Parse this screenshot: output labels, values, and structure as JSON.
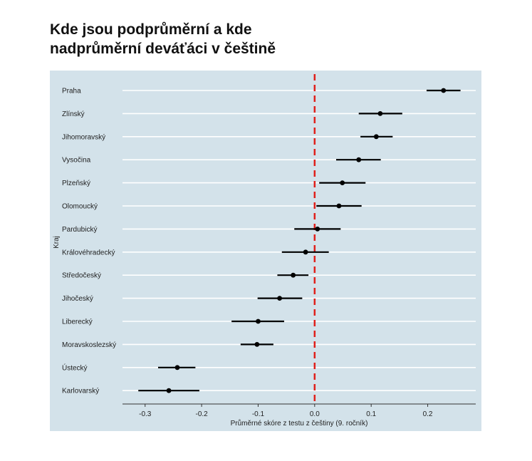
{
  "chart_data": {
    "type": "dot-range",
    "title_lines": [
      "Kde jsou podprůměrní a kde",
      "nadprůměrní deváťáci v češtině"
    ],
    "xlabel": "Průměrné skóre z testu z češtiny (9. ročník)",
    "ylabel": "Kraj",
    "xlim": [
      -0.34,
      0.285
    ],
    "xticks": [
      -0.3,
      -0.2,
      -0.1,
      0.0,
      0.1,
      0.2
    ],
    "xtick_labels": [
      "-0.3",
      "-0.2",
      "-0.1",
      "0.0",
      "0.1",
      "0.2"
    ],
    "reference_line": 0.0,
    "reference_color": "#e0201b",
    "series_color": "#000000",
    "categories": [
      "Praha",
      "Zlínský",
      "Jihomoravský",
      "Vysočina",
      "Plzeňský",
      "Olomoucký",
      "Pardubický",
      "Královéhradecký",
      "Středočeský",
      "Jihočeský",
      "Liberecký",
      "Moravskoslezský",
      "Ústecký",
      "Karlovarský"
    ],
    "estimates": [
      0.228,
      0.116,
      0.109,
      0.078,
      0.049,
      0.043,
      0.005,
      -0.016,
      -0.038,
      -0.062,
      -0.1,
      -0.102,
      -0.243,
      -0.258
    ],
    "lower": [
      0.198,
      0.078,
      0.081,
      0.038,
      0.008,
      0.003,
      -0.036,
      -0.058,
      -0.066,
      -0.101,
      -0.147,
      -0.131,
      -0.277,
      -0.312
    ],
    "upper": [
      0.258,
      0.155,
      0.138,
      0.117,
      0.09,
      0.083,
      0.046,
      0.025,
      -0.011,
      -0.022,
      -0.054,
      -0.073,
      -0.211,
      -0.204
    ]
  }
}
